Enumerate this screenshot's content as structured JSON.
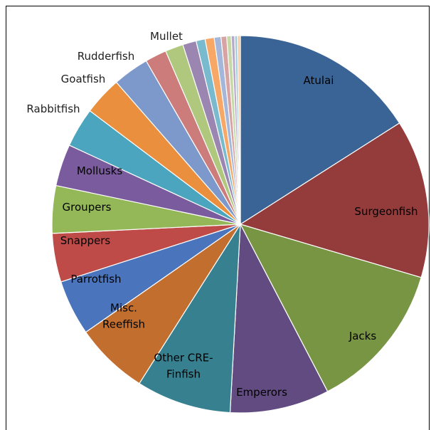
{
  "chart_data": {
    "type": "pie",
    "title": "",
    "start_angle_deg": 0,
    "direction": "clockwise",
    "slices": [
      {
        "label": "Atulai",
        "value": 16.5,
        "color": "#3A6496"
      },
      {
        "label": "Surgeonfish",
        "value": 14.0,
        "color": "#943C3B"
      },
      {
        "label": "Jacks",
        "value": 13.2,
        "color": "#789544"
      },
      {
        "label": "Emperors",
        "value": 8.8,
        "color": "#614B80"
      },
      {
        "label": "Other CRE-Finfish",
        "value": 8.4,
        "color": "#368090"
      },
      {
        "label": "Misc. Reeffish",
        "value": 6.5,
        "color": "#C26E2F"
      },
      {
        "label": "Parrotfish",
        "value": 4.9,
        "color": "#4A74BC"
      },
      {
        "label": "Snappers",
        "value": 4.3,
        "color": "#BE4B48"
      },
      {
        "label": "Groupers",
        "value": 4.2,
        "color": "#94B757"
      },
      {
        "label": "Mollusks",
        "value": 3.7,
        "color": "#7A5B9D"
      },
      {
        "label": "Rabbitfish",
        "value": 3.5,
        "color": "#4BA5BF"
      },
      {
        "label": "Goatfish",
        "value": 3.4,
        "color": "#EA8F3E"
      },
      {
        "label": "Rudderfish",
        "value": 3.2,
        "color": "#7D98CA"
      },
      {
        "label": "Mullet",
        "value": 1.9,
        "color": "#CC7C7A"
      },
      {
        "label": "",
        "value": 1.6,
        "color": "#AFC87E"
      },
      {
        "label": "",
        "value": 1.2,
        "color": "#9B86B2"
      },
      {
        "label": "",
        "value": 0.8,
        "color": "#79BACE"
      },
      {
        "label": "",
        "value": 0.8,
        "color": "#F7A766"
      },
      {
        "label": "",
        "value": 0.6,
        "color": "#A4B6DA"
      },
      {
        "label": "",
        "value": 0.5,
        "color": "#D8A4A3"
      },
      {
        "label": "",
        "value": 0.4,
        "color": "#C5D8A6"
      },
      {
        "label": "",
        "value": 0.3,
        "color": "#B7A9CA"
      },
      {
        "label": "",
        "value": 0.25,
        "color": "#A3CFDC"
      },
      {
        "label": "",
        "value": 0.25,
        "color": "#FBC89E"
      }
    ],
    "legend": "none"
  }
}
